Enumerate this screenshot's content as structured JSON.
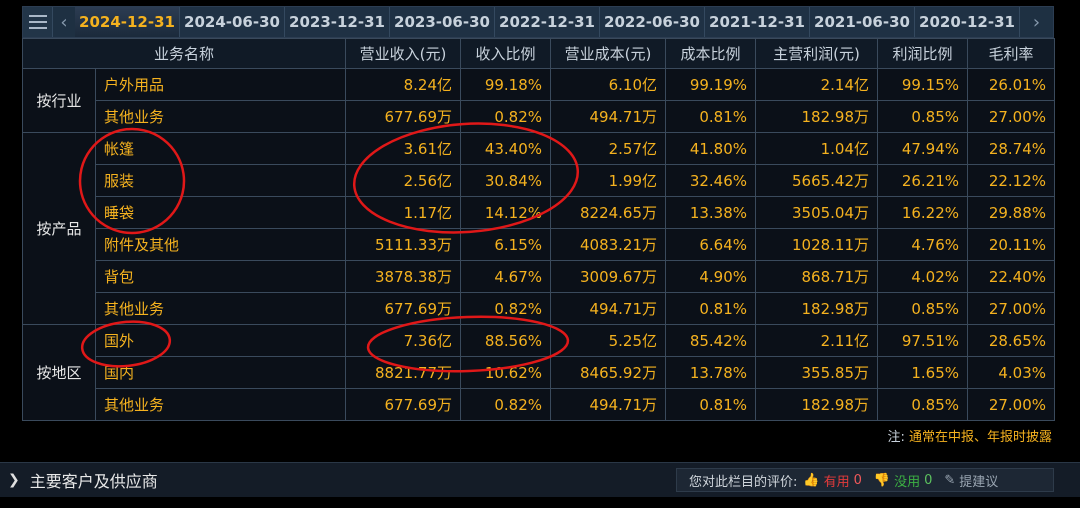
{
  "tabs": [
    "2024-12-31",
    "2024-06-30",
    "2023-12-31",
    "2023-06-30",
    "2022-12-31",
    "2022-06-30",
    "2021-12-31",
    "2021-06-30",
    "2020-12-31"
  ],
  "headers": [
    "业务名称",
    "营业收入(元)",
    "收入比例",
    "营业成本(元)",
    "成本比例",
    "主营利润(元)",
    "利润比例",
    "毛利率"
  ],
  "groups": {
    "industry": {
      "label": "按行业",
      "rows": [
        {
          "name": "户外用品",
          "revenue": "8.24亿",
          "rev_ratio": "99.18%",
          "cost": "6.10亿",
          "cost_ratio": "99.19%",
          "profit": "2.14亿",
          "profit_ratio": "99.15%",
          "margin": "26.01%"
        },
        {
          "name": "其他业务",
          "revenue": "677.69万",
          "rev_ratio": "0.82%",
          "cost": "494.71万",
          "cost_ratio": "0.81%",
          "profit": "182.98万",
          "profit_ratio": "0.85%",
          "margin": "27.00%"
        }
      ]
    },
    "product": {
      "label": "按产品",
      "rows": [
        {
          "name": "帐篷",
          "revenue": "3.61亿",
          "rev_ratio": "43.40%",
          "cost": "2.57亿",
          "cost_ratio": "41.80%",
          "profit": "1.04亿",
          "profit_ratio": "47.94%",
          "margin": "28.74%"
        },
        {
          "name": "服装",
          "revenue": "2.56亿",
          "rev_ratio": "30.84%",
          "cost": "1.99亿",
          "cost_ratio": "32.46%",
          "profit": "5665.42万",
          "profit_ratio": "26.21%",
          "margin": "22.12%"
        },
        {
          "name": "睡袋",
          "revenue": "1.17亿",
          "rev_ratio": "14.12%",
          "cost": "8224.65万",
          "cost_ratio": "13.38%",
          "profit": "3505.04万",
          "profit_ratio": "16.22%",
          "margin": "29.88%"
        },
        {
          "name": "附件及其他",
          "revenue": "5111.33万",
          "rev_ratio": "6.15%",
          "cost": "4083.21万",
          "cost_ratio": "6.64%",
          "profit": "1028.11万",
          "profit_ratio": "4.76%",
          "margin": "20.11%"
        },
        {
          "name": "背包",
          "revenue": "3878.38万",
          "rev_ratio": "4.67%",
          "cost": "3009.67万",
          "cost_ratio": "4.90%",
          "profit": "868.71万",
          "profit_ratio": "4.02%",
          "margin": "22.40%"
        },
        {
          "name": "其他业务",
          "revenue": "677.69万",
          "rev_ratio": "0.82%",
          "cost": "494.71万",
          "cost_ratio": "0.81%",
          "profit": "182.98万",
          "profit_ratio": "0.85%",
          "margin": "27.00%"
        }
      ]
    },
    "region": {
      "label": "按地区",
      "rows": [
        {
          "name": "国外",
          "revenue": "7.36亿",
          "rev_ratio": "88.56%",
          "cost": "5.25亿",
          "cost_ratio": "85.42%",
          "profit": "2.11亿",
          "profit_ratio": "97.51%",
          "margin": "28.65%"
        },
        {
          "name": "国内",
          "revenue": "8821.77万",
          "rev_ratio": "10.62%",
          "cost": "8465.92万",
          "cost_ratio": "13.78%",
          "profit": "355.85万",
          "profit_ratio": "1.65%",
          "margin": "4.03%"
        },
        {
          "name": "其他业务",
          "revenue": "677.69万",
          "rev_ratio": "0.82%",
          "cost": "494.71万",
          "cost_ratio": "0.81%",
          "profit": "182.98万",
          "profit_ratio": "0.85%",
          "margin": "27.00%"
        }
      ]
    }
  },
  "note": {
    "prefix": "注:",
    "text": "通常在中报、年报时披露"
  },
  "section": {
    "title": "主要客户及供应商"
  },
  "rating": {
    "label": "您对此栏目的评价:",
    "useful": "有用",
    "useful_count": "0",
    "useless": "没用",
    "useless_count": "0",
    "suggest": "提建议"
  },
  "colors": {
    "accent": "#f5b21f",
    "annotation": "#e01818",
    "background": "#000000"
  }
}
